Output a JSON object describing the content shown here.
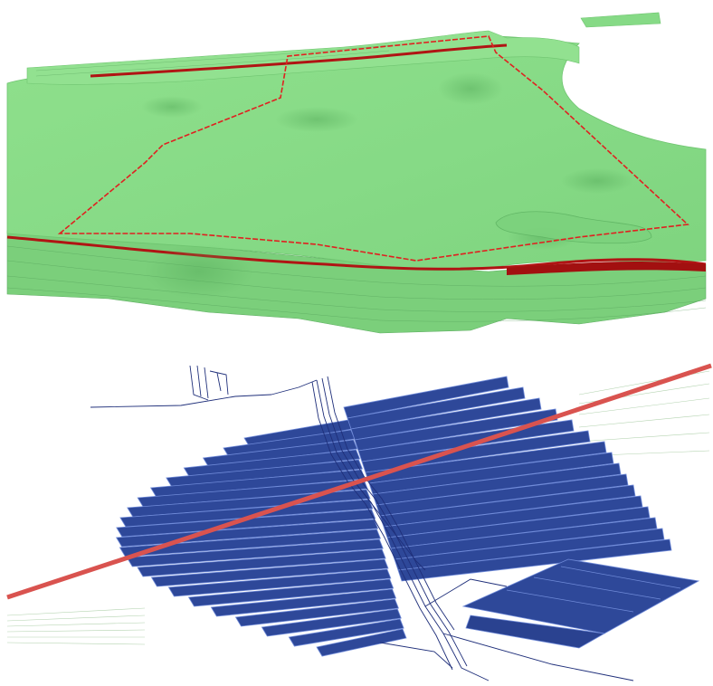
{
  "scenes": [
    {
      "id": "terrain-surface",
      "style": {
        "surface_color": "#8ddf8a",
        "surface_shadow_color": "#6cc86e",
        "boundary_color": "#e02020",
        "section_edge_color": "#b01414"
      }
    },
    {
      "id": "seam-panels",
      "style": {
        "panel_fill": "#2e4899",
        "panel_edge": "#6f8ad8",
        "roadway_color": "#1f2f7a",
        "fault_line_color": "#d9534f",
        "strata_line_color": "#9fc79a"
      }
    }
  ]
}
